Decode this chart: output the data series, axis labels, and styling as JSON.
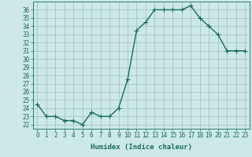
{
  "x": [
    0,
    1,
    2,
    3,
    4,
    5,
    6,
    7,
    8,
    9,
    10,
    11,
    12,
    13,
    14,
    15,
    16,
    17,
    18,
    19,
    20,
    21,
    22,
    23
  ],
  "y": [
    24.5,
    23.0,
    23.0,
    22.5,
    22.5,
    22.0,
    23.5,
    23.0,
    23.0,
    24.0,
    27.5,
    33.5,
    34.5,
    36.0,
    36.0,
    36.0,
    36.0,
    36.5,
    35.0,
    34.0,
    33.0,
    31.0,
    31.0,
    31.0
  ],
  "line_color": "#1a6b5a",
  "marker": "+",
  "markersize": 4,
  "linewidth": 1.0,
  "xlabel": "Humidex (Indice chaleur)",
  "xlim": [
    -0.5,
    23.5
  ],
  "ylim": [
    21.5,
    37.0
  ],
  "yticks": [
    22,
    23,
    24,
    25,
    26,
    27,
    28,
    29,
    30,
    31,
    32,
    33,
    34,
    35,
    36
  ],
  "xticks": [
    0,
    1,
    2,
    3,
    4,
    5,
    6,
    7,
    8,
    9,
    10,
    11,
    12,
    13,
    14,
    15,
    16,
    17,
    18,
    19,
    20,
    21,
    22,
    23
  ],
  "bg_color": "#cce8e8",
  "grid_color": "#9dbfbf",
  "tick_label_fontsize": 5.5,
  "xlabel_fontsize": 6.5
}
